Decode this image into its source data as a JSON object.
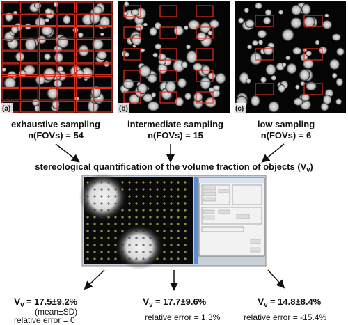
{
  "panels": [
    {
      "tag": "(a)",
      "name": "exhaustive sampling",
      "count": "n(FOVs) = 54"
    },
    {
      "tag": "(b)",
      "name": "intermediate sampling",
      "count": "n(FOVs) = 15"
    },
    {
      "tag": "(c)",
      "name": "low sampling",
      "count": "n(FOVs) = 6"
    }
  ],
  "heading": {
    "text": "stereological quantification of the volume fraction of objects (V",
    "subscript": "v",
    "close": ")"
  },
  "results": [
    {
      "symbol": "V",
      "subscript": "v",
      "value": " = 17.5±9.2%",
      "note": "(mean±SD)",
      "error": "relative error = 0"
    },
    {
      "symbol": "V",
      "subscript": "v",
      "value": " = 17.7±9.6%",
      "error": "relative error = 1.3%"
    },
    {
      "symbol": "V",
      "subscript": "v",
      "value": " = 14.8±8.4%",
      "error": "relative error = -15.4%"
    }
  ]
}
